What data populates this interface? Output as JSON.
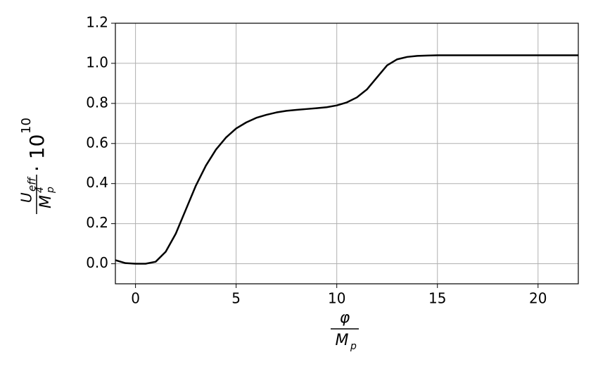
{
  "chart_data": {
    "type": "line",
    "xlabel": {
      "numerator": "φ",
      "denominator": "M",
      "denominator_sub": "p"
    },
    "ylabel": {
      "numerator": "U",
      "numerator_sub": "eff",
      "denominator": "M",
      "denominator_sub": "p",
      "denominator_sup": "4",
      "factor": "· 10",
      "factor_exp": "10"
    },
    "x": [
      -1,
      -0.5,
      0,
      0.5,
      1,
      1.5,
      2,
      2.5,
      3,
      3.5,
      4,
      4.5,
      5,
      5.5,
      6,
      6.5,
      7,
      7.5,
      8,
      8.5,
      9,
      9.5,
      10,
      10.5,
      11,
      11.5,
      12,
      12.5,
      13,
      13.5,
      14,
      14.5,
      15,
      16,
      17,
      18,
      19,
      20,
      21,
      22
    ],
    "series": [
      {
        "color": "#000000",
        "values": [
          0.018,
          0.003,
          0.0,
          0.0,
          0.01,
          0.06,
          0.15,
          0.27,
          0.39,
          0.49,
          0.57,
          0.63,
          0.675,
          0.705,
          0.728,
          0.743,
          0.755,
          0.763,
          0.768,
          0.772,
          0.776,
          0.781,
          0.79,
          0.805,
          0.83,
          0.87,
          0.93,
          0.99,
          1.02,
          1.032,
          1.037,
          1.039,
          1.04,
          1.04,
          1.04,
          1.04,
          1.04,
          1.04,
          1.04,
          1.04
        ]
      }
    ],
    "xlim": [
      -1,
      22
    ],
    "ylim": [
      -0.1,
      1.2
    ],
    "xticks": [
      0,
      5,
      10,
      15,
      20
    ],
    "yticks": [
      {
        "value": 0,
        "label": "0.0"
      },
      0.2,
      0.4,
      0.6,
      0.8,
      {
        "value": 1,
        "label": "1.0"
      },
      1.2
    ],
    "grid": true
  }
}
